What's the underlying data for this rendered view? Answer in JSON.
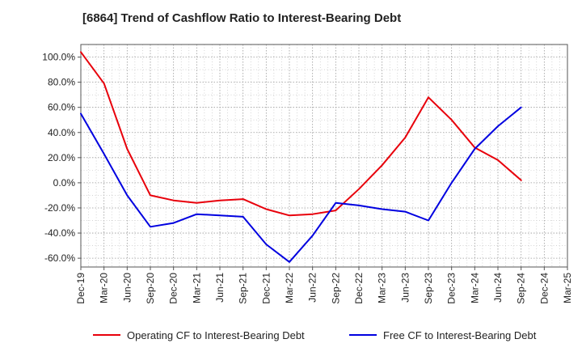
{
  "chart_data": {
    "type": "line",
    "title": "[6864]  Trend of Cashflow Ratio to Interest-Bearing Debt",
    "xlabel": "",
    "ylabel": "",
    "categories": [
      "Dec-19",
      "Mar-20",
      "Jun-20",
      "Sep-20",
      "Dec-20",
      "Mar-21",
      "Jun-21",
      "Sep-21",
      "Dec-21",
      "Mar-22",
      "Jun-22",
      "Sep-22",
      "Dec-22",
      "Mar-23",
      "Jun-23",
      "Sep-23",
      "Dec-23",
      "Mar-24",
      "Jun-24",
      "Sep-24",
      "Dec-24",
      "Mar-25"
    ],
    "ylim": [
      -67,
      110
    ],
    "yticks": [
      100,
      80,
      60,
      40,
      20,
      0,
      -20,
      -40,
      -60
    ],
    "ytick_labels": [
      "100.0%",
      "80.0%",
      "60.0%",
      "40.0%",
      "20.0%",
      "0.0%",
      "-20.0%",
      "-40.0%",
      "-60.0%"
    ],
    "grid": true,
    "legend_position": "bottom",
    "series": [
      {
        "name": "Operating CF to Interest-Bearing Debt",
        "color": "#e8000b",
        "values": [
          104,
          79,
          27,
          -10,
          -14,
          -16,
          -14,
          -13,
          -21,
          -26,
          -25,
          -22,
          -5,
          14,
          36,
          68,
          50,
          28,
          18,
          2,
          null,
          null
        ]
      },
      {
        "name": "Free CF to Interest-Bearing Debt",
        "color": "#0000e0",
        "values": [
          55,
          23,
          -10,
          -35,
          -32,
          -25,
          -26,
          -27,
          -49,
          -63,
          -42,
          -16,
          -18,
          -21,
          -23,
          -30,
          0,
          27,
          45,
          60,
          null,
          null
        ]
      }
    ]
  }
}
